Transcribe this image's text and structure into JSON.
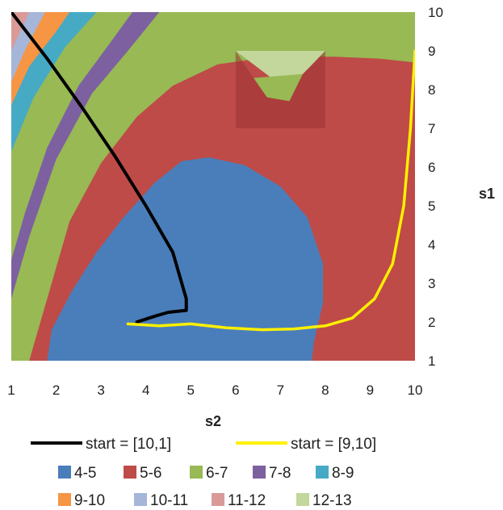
{
  "chart_data": {
    "type": "contour",
    "xlabel": "s2",
    "ylabel": "s1",
    "xlim": [
      1,
      10
    ],
    "ylim": [
      1,
      10
    ],
    "x_ticks": [
      "1",
      "2",
      "3",
      "4",
      "5",
      "6",
      "7",
      "8",
      "9",
      "10"
    ],
    "y_ticks": [
      "1",
      "2",
      "3",
      "4",
      "5",
      "6",
      "7",
      "8",
      "9",
      "10"
    ],
    "grid": false,
    "legend_position": "bottom",
    "contour_bands": [
      {
        "name": "4-5",
        "color": "#4A7EBB"
      },
      {
        "name": "5-6",
        "color": "#BE4B48"
      },
      {
        "name": "6-7",
        "color": "#98B954"
      },
      {
        "name": "7-8",
        "color": "#7D60A0"
      },
      {
        "name": "8-9",
        "color": "#46AAC5"
      },
      {
        "name": "9-10",
        "color": "#F69544"
      },
      {
        "name": "10-11",
        "color": "#A5B6D8"
      },
      {
        "name": "11-12",
        "color": "#D99A98"
      },
      {
        "name": "12-13",
        "color": "#C3D69B"
      }
    ],
    "series": [
      {
        "name": "start = [10,1]",
        "color": "#000000",
        "x": [
          1.0,
          1.8,
          2.6,
          3.3,
          4.0,
          4.6,
          4.9,
          4.9,
          4.5,
          4.2,
          3.8
        ],
        "y": [
          10.0,
          8.8,
          7.5,
          6.3,
          5.0,
          3.8,
          2.6,
          2.3,
          2.25,
          2.15,
          2.0
        ]
      },
      {
        "name": "start = [9,10]",
        "color": "#FFF000",
        "x": [
          3.6,
          4.3,
          5.0,
          5.8,
          6.6,
          7.3,
          8.0,
          8.6,
          9.1,
          9.5,
          9.75,
          9.9,
          10.0
        ],
        "y": [
          1.95,
          1.9,
          1.95,
          1.85,
          1.8,
          1.82,
          1.9,
          2.1,
          2.6,
          3.5,
          5.0,
          7.0,
          9.0
        ]
      }
    ]
  }
}
